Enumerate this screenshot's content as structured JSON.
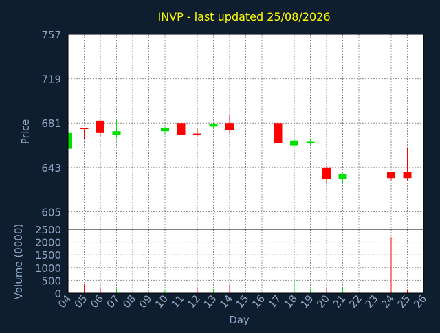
{
  "colors": {
    "background": "#0f1e2e",
    "plot_background": "#ffffff",
    "title": "#ffff00",
    "axis_text": "#8fa9c9",
    "up": "#00e000",
    "down": "#ff0000",
    "grid": "#888888"
  },
  "chart_data": {
    "type": "candlestick",
    "title": "INVP - last updated 25/08/2026",
    "price_panel": {
      "ylabel": "Price",
      "ylim": [
        590,
        757
      ],
      "yticks": [
        605,
        643,
        681,
        719,
        757
      ]
    },
    "volume_panel": {
      "ylabel": "Volume (0000)",
      "ylim": [
        0,
        2500
      ],
      "yticks": [
        0,
        500,
        1000,
        1500,
        2000,
        2500
      ],
      "ytick_labels": [
        "0",
        "500",
        "1000",
        "1500",
        "2000",
        "2500"
      ]
    },
    "xlabel": "Day",
    "x_tick_labels": [
      "04",
      "05",
      "06",
      "07",
      "08",
      "09",
      "10",
      "11",
      "12",
      "13",
      "14",
      "15",
      "16",
      "17",
      "18",
      "19",
      "20",
      "21",
      "22",
      "23",
      "24",
      "25",
      "26"
    ],
    "grid": true,
    "candles": [
      {
        "day": "04",
        "open": 659,
        "high": 673,
        "low": 659,
        "close": 673,
        "volume": 80
      },
      {
        "day": "05",
        "open": 677,
        "high": 677,
        "low": 667,
        "close": 676,
        "volume": 380
      },
      {
        "day": "06",
        "open": 683,
        "high": 683,
        "low": 669,
        "close": 673,
        "volume": 220
      },
      {
        "day": "07",
        "open": 671,
        "high": 684,
        "low": 668,
        "close": 674,
        "volume": 180
      },
      {
        "day": "10",
        "open": 674,
        "high": 678,
        "low": 672,
        "close": 677,
        "volume": 150
      },
      {
        "day": "11",
        "open": 681,
        "high": 681,
        "low": 670,
        "close": 671,
        "volume": 220
      },
      {
        "day": "12",
        "open": 672,
        "high": 677,
        "low": 670,
        "close": 671,
        "volume": 200
      },
      {
        "day": "13",
        "open": 678,
        "high": 681,
        "low": 677,
        "close": 680,
        "volume": 160
      },
      {
        "day": "14",
        "open": 681,
        "high": 688,
        "low": 673,
        "close": 675,
        "volume": 330
      },
      {
        "day": "17",
        "open": 681,
        "high": 681,
        "low": 663,
        "close": 664,
        "volume": 200
      },
      {
        "day": "18",
        "open": 662,
        "high": 668,
        "low": 661,
        "close": 666,
        "volume": 560
      },
      {
        "day": "19",
        "open": 664,
        "high": 668,
        "low": 663,
        "close": 665,
        "volume": 170
      },
      {
        "day": "20",
        "open": 643,
        "high": 644,
        "low": 630,
        "close": 633,
        "volume": 220
      },
      {
        "day": "21",
        "open": 633,
        "high": 638,
        "low": 630,
        "close": 637,
        "volume": 230
      },
      {
        "day": "24",
        "open": 639,
        "high": 639,
        "low": 632,
        "close": 634,
        "volume": 2200
      },
      {
        "day": "25",
        "open": 639,
        "high": 660,
        "low": 632,
        "close": 634,
        "volume": 150
      }
    ]
  }
}
